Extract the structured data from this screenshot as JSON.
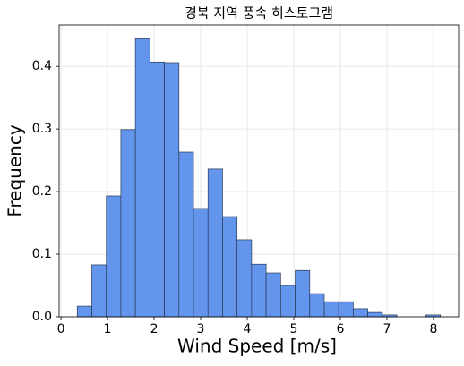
{
  "chart_data": {
    "type": "histogram",
    "title": "경북 지역 풍속 히스토그램",
    "x_label": "Wind Speed [m/s]",
    "y_label": "Frequency",
    "bins": [
      0.35,
      0.662,
      0.974,
      1.286,
      1.598,
      1.91,
      2.222,
      2.534,
      2.846,
      3.158,
      3.47,
      3.782,
      4.094,
      4.406,
      4.718,
      5.03,
      5.342,
      5.654,
      5.966,
      6.278,
      6.59,
      6.902,
      7.214,
      7.526,
      7.838,
      8.15
    ],
    "values": [
      0.017,
      0.083,
      0.193,
      0.299,
      0.444,
      0.407,
      0.406,
      0.263,
      0.173,
      0.236,
      0.16,
      0.123,
      0.084,
      0.07,
      0.05,
      0.074,
      0.037,
      0.024,
      0.024,
      0.013,
      0.007,
      0.003,
      0,
      0,
      0.003
    ],
    "color": "#6495ed",
    "edge_color": "#2b3a55",
    "xlim": [
      -0.04,
      8.54
    ],
    "ylim": [
      0,
      0.466
    ],
    "xticks": [
      0,
      1,
      2,
      3,
      4,
      5,
      6,
      7,
      8
    ],
    "yticks": [
      0.0,
      0.1,
      0.2,
      0.3,
      0.4
    ],
    "grid": true
  }
}
